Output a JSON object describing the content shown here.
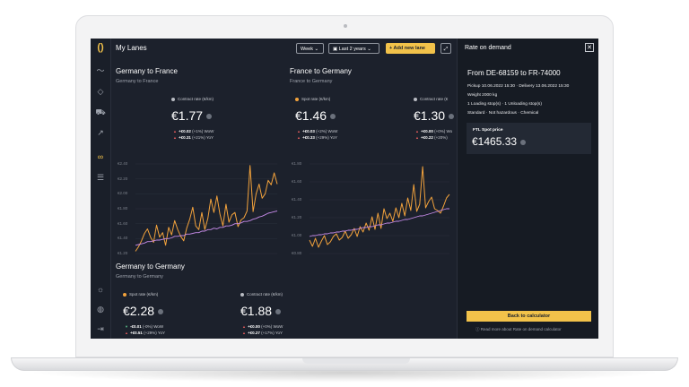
{
  "app": {
    "title": "My Lanes",
    "period_select": "Week",
    "range_select": "Last 2 years",
    "add_lane_label": "Add new lane"
  },
  "sidebar": {
    "icons": [
      "logo-icon",
      "activity-icon",
      "tag-icon",
      "truck-icon",
      "export-icon",
      "lanes-icon",
      "document-icon",
      "sun-icon",
      "globe-icon",
      "logout-icon"
    ]
  },
  "cards": [
    {
      "title": "Germany to France",
      "subtitle": "Germany to France",
      "metrics": [
        {
          "label": "Contract rate (€/km)",
          "value": "€1.77",
          "dot": "#b9bcc3",
          "wow": "+€0.02",
          "wow_pct": "(+1%) WoW",
          "yoy": "+€0.31",
          "yoy_pct": "(+21%) YoY"
        }
      ],
      "y_ticks": [
        "€2.40",
        "€2.20",
        "€2.00",
        "€1.80",
        "€1.60",
        "€1.40",
        "€1.20"
      ]
    },
    {
      "title": "France to Germany",
      "subtitle": "France to Germany",
      "metrics": [
        {
          "label": "Spot rate (€/km)",
          "value": "€1.46",
          "dot": "#f2a23c",
          "wow": "+€0.03",
          "wow_pct": "(+2%) WoW",
          "yoy": "+€0.33",
          "yoy_pct": "(+29%) YoY"
        },
        {
          "label": "Contract rate (€",
          "value": "€1.30",
          "dot": "#b9bcc3",
          "wow": "+€0.00",
          "wow_pct": "(+0%) Wo",
          "yoy": "+€0.22",
          "yoy_pct": "(+20%)"
        }
      ],
      "y_ticks": [
        "€1.80",
        "€1.60",
        "€1.40",
        "€1.20",
        "€1.00",
        "€0.80"
      ]
    },
    {
      "title": "Germany to Germany",
      "subtitle": "Germany to Germany",
      "metrics": [
        {
          "label": "Spot rate (€/km)",
          "value": "€2.28",
          "dot": "#f2a23c",
          "wow": "-€0.01",
          "wow_pct": "(-0%) WoW",
          "yoy": "+€0.51",
          "yoy_pct": "(+29%) YoY"
        },
        {
          "label": "Contract rate (€/km)",
          "value": "€1.88",
          "dot": "#b9bcc3",
          "wow": "+€0.00",
          "wow_pct": "(+0%) WoW",
          "yoy": "+€0.27",
          "yoy_pct": "(+17%) YoY"
        }
      ]
    }
  ],
  "panel": {
    "title": "Rate on demand",
    "route": "From DE-68159 to FR-74000",
    "dates": "Pickup 10.06.2022 15:30 · Delivery 13.06.2022 15:30",
    "weight": "Weight 2000 kg",
    "stops": "1 Loading stop(s) · 1 Unloading stop(s)",
    "attributes": "Standard · Not hazardous · Chemical",
    "price_label": "FTL Spot price",
    "price_value": "€1465.33",
    "back_button": "Back to calculator",
    "read_more": "Read more about Rate on demand calculator"
  },
  "colors": {
    "spot": "#f2a23c",
    "contract": "#c58ae8",
    "accent": "#f2c24a",
    "background": "#1c212c"
  },
  "chart_data": [
    {
      "type": "line",
      "title": "Germany to France",
      "ylim": [
        1.2,
        2.4
      ],
      "series": [
        {
          "name": "Spot rate (€/km)",
          "values": [
            1.23,
            1.29,
            1.37,
            1.47,
            1.53,
            1.42,
            1.35,
            1.58,
            1.42,
            1.48,
            1.31,
            1.55,
            1.45,
            1.64,
            1.52,
            1.43,
            1.37,
            1.54,
            1.66,
            1.82,
            1.57,
            1.52,
            1.75,
            1.52,
            1.67,
            1.93,
            1.75,
            1.97,
            1.73,
            1.57,
            1.86,
            1.62,
            1.72,
            1.75,
            1.56,
            1.65,
            1.68,
            1.77,
            2.38,
            1.76,
            2.0,
            2.13,
            1.94,
            2.0,
            2.18,
            2.12,
            2.28,
            2.13
          ]
        },
        {
          "name": "Contract rate (€/km)",
          "values": [
            1.31,
            1.32,
            1.33,
            1.34,
            1.36,
            1.36,
            1.37,
            1.38,
            1.38,
            1.39,
            1.4,
            1.4,
            1.41,
            1.43,
            1.43,
            1.44,
            1.44,
            1.46,
            1.46,
            1.47,
            1.48,
            1.48,
            1.5,
            1.5,
            1.52,
            1.52,
            1.54,
            1.53,
            1.55,
            1.55,
            1.57,
            1.57,
            1.58,
            1.6,
            1.6,
            1.61,
            1.63,
            1.63,
            1.64,
            1.66,
            1.67,
            1.69,
            1.7,
            1.72,
            1.74,
            1.75,
            1.76,
            1.77
          ]
        }
      ]
    },
    {
      "type": "line",
      "title": "France to Germany",
      "ylim": [
        0.8,
        1.8
      ],
      "series": [
        {
          "name": "Spot rate (€/km)",
          "values": [
            0.95,
            0.88,
            0.97,
            0.87,
            0.94,
            1.0,
            0.9,
            0.93,
            0.99,
            1.02,
            0.95,
            0.98,
            1.05,
            0.97,
            1.01,
            1.08,
            0.99,
            1.1,
            1.04,
            1.14,
            1.06,
            1.21,
            1.07,
            1.25,
            1.08,
            1.3,
            1.19,
            1.25,
            1.16,
            1.31,
            1.2,
            1.36,
            1.22,
            1.42,
            1.28,
            1.57,
            1.27,
            1.35,
            1.77,
            1.31,
            1.38,
            1.43,
            1.3,
            1.28,
            1.25,
            1.33,
            1.42,
            1.46
          ]
        },
        {
          "name": "Contract rate (€/km)",
          "values": [
            0.99,
            1.0,
            1.0,
            1.01,
            1.01,
            1.02,
            1.02,
            1.03,
            1.03,
            1.04,
            1.04,
            1.05,
            1.05,
            1.06,
            1.06,
            1.07,
            1.07,
            1.08,
            1.09,
            1.09,
            1.1,
            1.1,
            1.11,
            1.12,
            1.12,
            1.13,
            1.14,
            1.14,
            1.15,
            1.16,
            1.16,
            1.17,
            1.18,
            1.18,
            1.19,
            1.2,
            1.21,
            1.22,
            1.22,
            1.23,
            1.24,
            1.25,
            1.26,
            1.27,
            1.28,
            1.29,
            1.3,
            1.3
          ]
        }
      ]
    }
  ]
}
